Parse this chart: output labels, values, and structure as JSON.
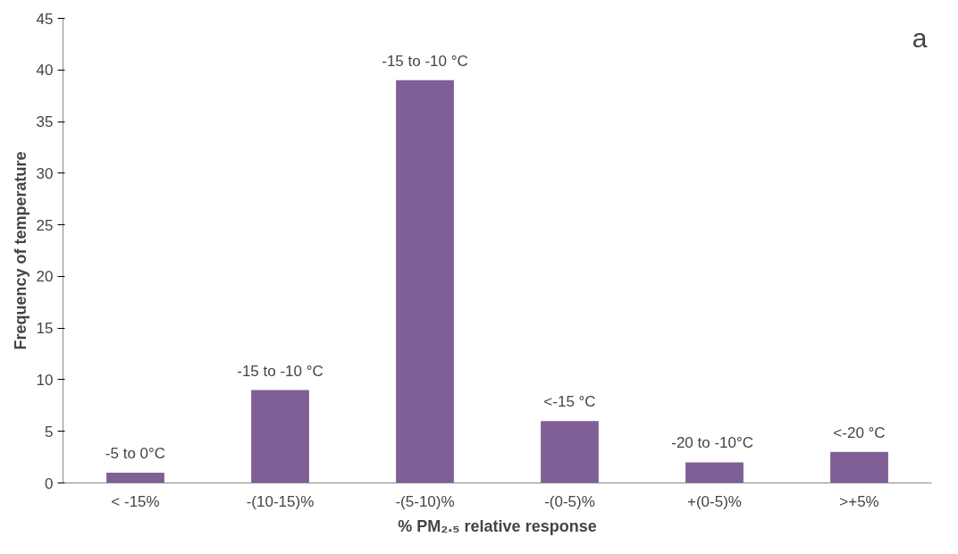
{
  "chart_data": {
    "type": "bar",
    "xlabel": "% PM₂.₅ relative response",
    "ylabel": "Frequency of temperature",
    "categories": [
      "< -15%",
      "-(10-15)%",
      "-(5-10)%",
      "-(0-5)%",
      "+(0-5)%",
      ">+5%"
    ],
    "values": [
      1,
      9,
      39,
      6,
      2,
      3
    ],
    "color": "#7f5f96",
    "ylim": [
      0,
      45
    ],
    "yticks": [
      0,
      5,
      10,
      15,
      20,
      25,
      30,
      35,
      40,
      45
    ],
    "grid": false,
    "annotations": [
      {
        "text": "-5 to 0°C",
        "x": "< -15%",
        "y": 1
      },
      {
        "text": "-15 to -10 °C",
        "x": "-(10-15)%",
        "y": 9
      },
      {
        "text": "-15 to -10 °C",
        "x": "-(5-10)%",
        "y": 39
      },
      {
        "text": "<-15 °C",
        "x": "-(0-5)%",
        "y": 6
      },
      {
        "text": "-20  to -10°C",
        "x": "+(0-5)%",
        "y": 2
      },
      {
        "text": "<-20 °C",
        "x": ">+5%",
        "y": 3
      },
      "a"
    ]
  }
}
